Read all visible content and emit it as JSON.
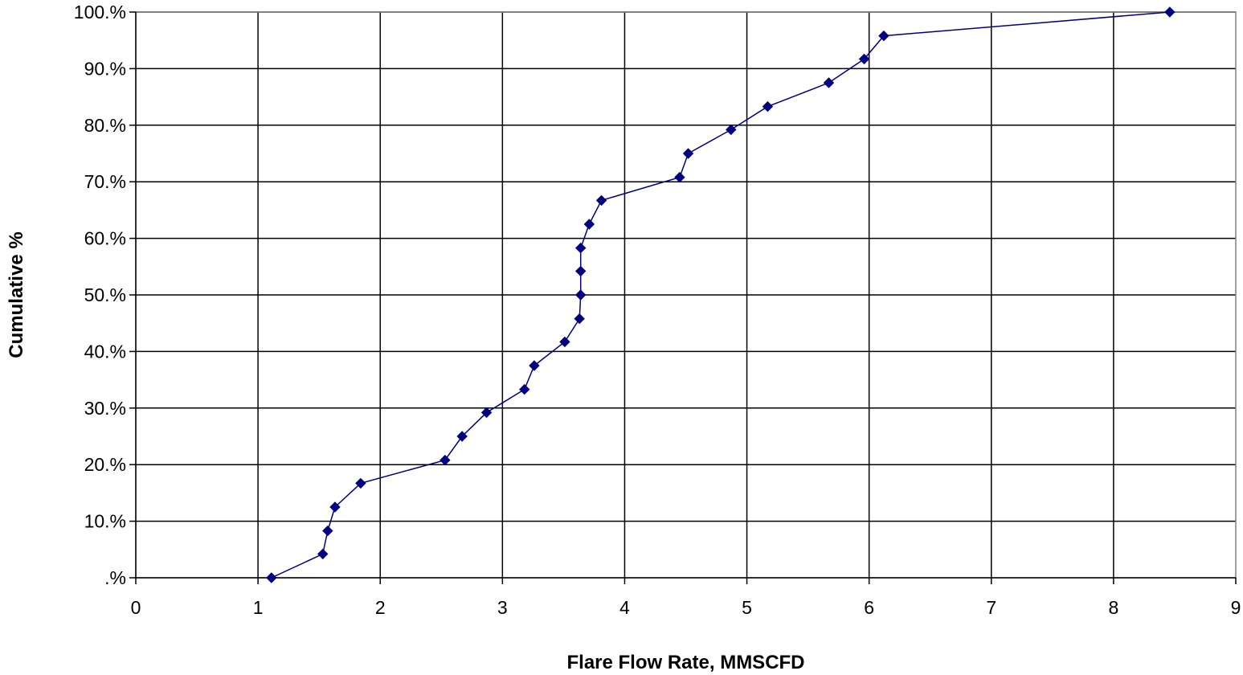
{
  "chart_data": {
    "type": "line",
    "title": "",
    "xlabel": "Flare Flow Rate, MMSCFD",
    "ylabel": "Cumulative %",
    "xlim": [
      0,
      9
    ],
    "ylim": [
      0,
      100
    ],
    "x_ticks": [
      0,
      1,
      2,
      3,
      4,
      5,
      6,
      7,
      8,
      9
    ],
    "x_tick_labels": [
      "0",
      "1",
      "2",
      "3",
      "4",
      "5",
      "6",
      "7",
      "8",
      "9"
    ],
    "y_ticks": [
      0,
      10,
      20,
      30,
      40,
      50,
      60,
      70,
      80,
      90,
      100
    ],
    "y_tick_labels": [
      ".%",
      "10.%",
      "20.%",
      "30.%",
      "40.%",
      "50.%",
      "60.%",
      "70.%",
      "80.%",
      "90.%",
      "100.%"
    ],
    "grid": true,
    "legend": "none",
    "series": [
      {
        "color": "#000080",
        "marker": "diamond",
        "points": [
          {
            "x": 1.11,
            "y": 0
          },
          {
            "x": 1.53,
            "y": 4.2
          },
          {
            "x": 1.57,
            "y": 8.3
          },
          {
            "x": 1.63,
            "y": 12.5
          },
          {
            "x": 1.84,
            "y": 16.7
          },
          {
            "x": 2.53,
            "y": 20.8
          },
          {
            "x": 2.67,
            "y": 25.0
          },
          {
            "x": 2.87,
            "y": 29.2
          },
          {
            "x": 3.18,
            "y": 33.3
          },
          {
            "x": 3.26,
            "y": 37.5
          },
          {
            "x": 3.51,
            "y": 41.7
          },
          {
            "x": 3.63,
            "y": 45.8
          },
          {
            "x": 3.64,
            "y": 50.0
          },
          {
            "x": 3.64,
            "y": 54.2
          },
          {
            "x": 3.64,
            "y": 58.3
          },
          {
            "x": 3.71,
            "y": 62.5
          },
          {
            "x": 3.81,
            "y": 66.7
          },
          {
            "x": 4.45,
            "y": 70.8
          },
          {
            "x": 4.52,
            "y": 75.0
          },
          {
            "x": 4.87,
            "y": 79.2
          },
          {
            "x": 5.17,
            "y": 83.3
          },
          {
            "x": 5.67,
            "y": 87.5
          },
          {
            "x": 5.96,
            "y": 91.7
          },
          {
            "x": 6.12,
            "y": 95.8
          },
          {
            "x": 8.46,
            "y": 100
          }
        ]
      }
    ]
  }
}
